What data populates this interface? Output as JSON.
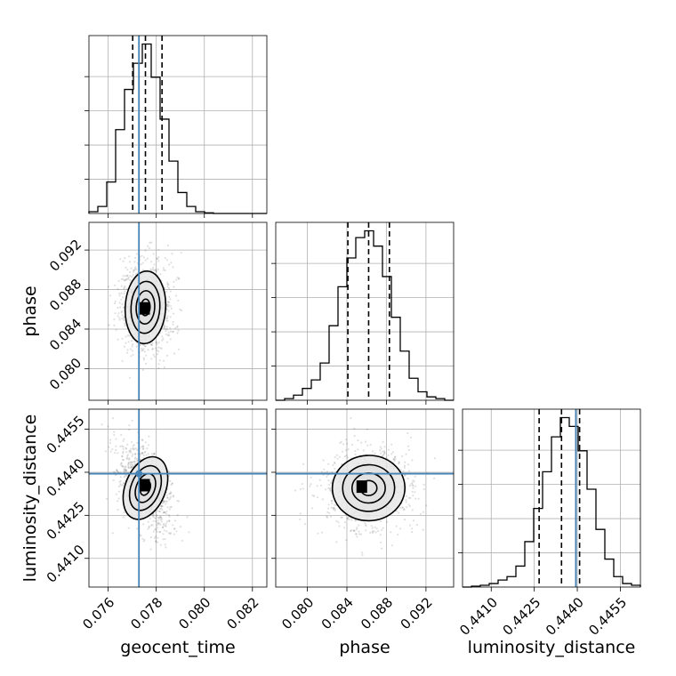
{
  "chart_data": {
    "type": "corner",
    "parameters": [
      {
        "name": "geocent_time",
        "label": "geocent_time",
        "range": [
          0.0752,
          0.0826
        ],
        "ticks": [
          0.076,
          0.078,
          0.08,
          0.082
        ],
        "tick_labels": [
          "0.076",
          "0.078",
          "0.080",
          "0.082"
        ],
        "histogram_bin_edges": [
          0.0752,
          0.07557,
          0.07594,
          0.07631,
          0.07668,
          0.07705,
          0.07742,
          0.07779,
          0.07816,
          0.07853,
          0.0789,
          0.07927,
          0.07964,
          0.08001,
          0.08038,
          0.08075,
          0.08112,
          0.08149,
          0.08186,
          0.08223,
          0.0826
        ],
        "histogram_counts": [
          0.01,
          0.04,
          0.18,
          0.48,
          0.71,
          0.86,
          0.97,
          0.78,
          0.54,
          0.3,
          0.12,
          0.04,
          0.01,
          0.004,
          0,
          0,
          0,
          0,
          0,
          0
        ],
        "quantiles": [
          0.07702,
          0.07755,
          0.07824
        ],
        "truth": 0.07728
      },
      {
        "name": "phase",
        "label": "phase",
        "range": [
          0.0768,
          0.0948
        ],
        "ticks": [
          0.08,
          0.084,
          0.088,
          0.092
        ],
        "tick_labels": [
          "0.080",
          "0.084",
          "0.088",
          "0.092"
        ],
        "histogram_bin_edges": [
          0.0768,
          0.0777,
          0.0786,
          0.0795,
          0.0804,
          0.0813,
          0.0822,
          0.0831,
          0.084,
          0.0849,
          0.0858,
          0.0867,
          0.0876,
          0.0885,
          0.0894,
          0.0903,
          0.0912,
          0.0921,
          0.093,
          0.0939,
          0.0948
        ],
        "histogram_counts": [
          0,
          0.01,
          0.03,
          0.07,
          0.12,
          0.22,
          0.44,
          0.67,
          0.84,
          0.96,
          1.0,
          0.91,
          0.73,
          0.49,
          0.29,
          0.13,
          0.05,
          0.02,
          0.01,
          0
        ],
        "quantiles": [
          0.0841,
          0.0862,
          0.0883
        ]
      },
      {
        "name": "luminosity_distance",
        "label": "luminosity_distance",
        "range": [
          0.44,
          0.4462
        ],
        "ticks": [
          0.441,
          0.4425,
          0.444,
          0.4455
        ],
        "tick_labels": [
          "0.4410",
          "0.4425",
          "0.4440",
          "0.4455"
        ],
        "histogram_bin_edges": [
          0.44,
          0.44031,
          0.44062,
          0.44093,
          0.44124,
          0.44155,
          0.44186,
          0.44217,
          0.44248,
          0.44279,
          0.4431,
          0.44341,
          0.44372,
          0.44403,
          0.44434,
          0.44465,
          0.44496,
          0.44527,
          0.44558,
          0.44589,
          0.4462
        ],
        "histogram_counts": [
          0,
          0.005,
          0.01,
          0.02,
          0.04,
          0.06,
          0.12,
          0.26,
          0.45,
          0.66,
          0.86,
          0.97,
          0.92,
          0.78,
          0.56,
          0.33,
          0.16,
          0.06,
          0.02,
          0.01
        ],
        "quantiles": [
          0.44267,
          0.44345,
          0.44408
        ],
        "truth": 0.44395
      }
    ],
    "scatter_2d": [
      {
        "x_param": "geocent_time",
        "y_param": "phase",
        "x_center": 0.07755,
        "y_center": 0.0862,
        "x_std": 0.00048,
        "y_std": 0.0021,
        "correlation": -0.05,
        "peak": [
          0.07755,
          0.0861
        ],
        "contour_levels": [
          0.4,
          0.8,
          1.25,
          1.75
        ]
      },
      {
        "x_param": "geocent_time",
        "y_param": "luminosity_distance",
        "x_center": 0.07755,
        "y_center": 0.44345,
        "x_std": 0.00048,
        "y_std": 0.00065,
        "correlation": -0.45,
        "peak": [
          0.07755,
          0.44355
        ],
        "contour_levels": [
          0.4,
          0.8,
          1.25,
          1.75
        ]
      },
      {
        "x_param": "phase",
        "y_param": "luminosity_distance",
        "x_center": 0.0862,
        "y_center": 0.44345,
        "x_std": 0.0021,
        "y_std": 0.00065,
        "correlation": 0.05,
        "peak": [
          0.0856,
          0.4435
        ],
        "contour_levels": [
          0.4,
          0.8,
          1.25,
          1.75
        ]
      }
    ],
    "truth_color": "#4682b4",
    "grid": true,
    "quantile_style": "dashed"
  }
}
